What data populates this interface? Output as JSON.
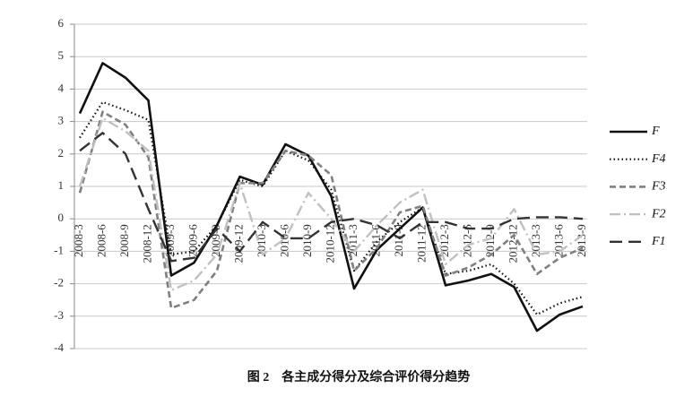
{
  "chart_data": {
    "type": "line",
    "title": "图 2　各主成分得分及综合评价得分趋势",
    "categories": [
      "2008-3",
      "2008-6",
      "2008-9",
      "2008-12",
      "2009-3",
      "2009-6",
      "2009-9",
      "2009-12",
      "2010-3",
      "2010-6",
      "2010-9",
      "2010-12",
      "2011-3",
      "2011-6",
      "2011-9",
      "2011-12",
      "2012-3",
      "2012-6",
      "2012-9",
      "2012-12",
      "2013-3",
      "2013-6",
      "2013-9"
    ],
    "series": [
      {
        "name": "F",
        "color": "#111111",
        "values": [
          3.25,
          4.8,
          4.35,
          3.65,
          -1.75,
          -1.35,
          -0.2,
          1.3,
          1.05,
          2.3,
          1.95,
          0.7,
          -2.15,
          -0.95,
          -0.3,
          0.35,
          -2.05,
          -1.9,
          -1.7,
          -2.1,
          -3.45,
          -2.95,
          -2.7
        ]
      },
      {
        "name": "F4",
        "color": "#111111",
        "values": [
          2.5,
          3.6,
          3.35,
          3.05,
          -1.1,
          -1.0,
          -0.2,
          1.2,
          1.0,
          2.1,
          1.8,
          0.9,
          -1.6,
          -0.7,
          -0.1,
          0.35,
          -1.7,
          -1.6,
          -1.4,
          -2.0,
          -2.95,
          -2.6,
          -2.4
        ]
      },
      {
        "name": "F3",
        "color": "#808080",
        "values": [
          0.8,
          3.3,
          2.9,
          1.9,
          -2.75,
          -2.5,
          -1.6,
          1.1,
          1.1,
          2.1,
          1.95,
          1.35,
          -1.6,
          -0.9,
          0.2,
          0.4,
          -1.75,
          -1.5,
          -1.1,
          -0.5,
          -1.7,
          -1.2,
          -0.9
        ]
      },
      {
        "name": "F2",
        "color": "#c0c0c0",
        "values": [
          1.0,
          3.1,
          2.7,
          2.1,
          -2.2,
          -1.9,
          -1.1,
          1.1,
          -1.1,
          -0.6,
          0.8,
          0.0,
          -1.0,
          -0.2,
          0.5,
          0.9,
          -1.4,
          -0.8,
          -0.6,
          0.3,
          -1.1,
          -1.0,
          -0.5
        ]
      },
      {
        "name": "F1",
        "color": "#333333",
        "values": [
          2.1,
          2.65,
          2.0,
          0.3,
          -1.3,
          -1.2,
          -0.3,
          -1.0,
          -0.1,
          -0.6,
          -0.6,
          -0.1,
          0.0,
          -0.2,
          -0.6,
          -0.1,
          -0.1,
          -0.3,
          -0.3,
          0.0,
          0.05,
          0.05,
          0.0
        ]
      }
    ],
    "ylim": [
      -4,
      6
    ],
    "yticks": [
      -4,
      -3,
      -2,
      -1,
      0,
      1,
      2,
      3,
      4,
      5,
      6
    ],
    "grid": true
  }
}
